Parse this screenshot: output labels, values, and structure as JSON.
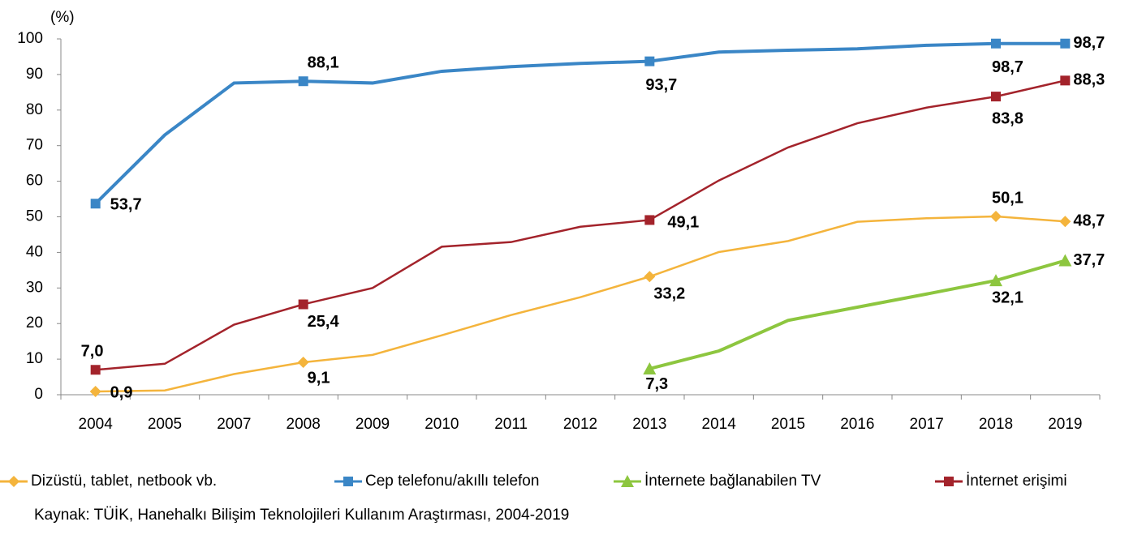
{
  "chart_data": {
    "type": "line",
    "unit_label": "(%)",
    "categories": [
      "2004",
      "2005",
      "2007",
      "2008",
      "2009",
      "2010",
      "2011",
      "2012",
      "2013",
      "2014",
      "2015",
      "2016",
      "2017",
      "2018",
      "2019"
    ],
    "ylim": [
      0,
      100
    ],
    "yticks": [
      0,
      10,
      20,
      30,
      40,
      50,
      60,
      70,
      80,
      90,
      100
    ],
    "legend": "bottom",
    "series": [
      {
        "name": "Dizüstü, tablet, netbook vb.",
        "color": "#f4b43c",
        "marker": "diamond",
        "values": [
          0.9,
          1.2,
          5.8,
          9.1,
          11.2,
          16.7,
          22.4,
          27.4,
          33.2,
          40.1,
          43.2,
          48.6,
          49.6,
          50.1,
          48.7
        ],
        "value_labels": [
          "0,9",
          null,
          null,
          "9,1",
          null,
          null,
          null,
          null,
          "33,2",
          null,
          null,
          null,
          null,
          "50,1",
          "48,7"
        ]
      },
      {
        "name": "Cep telefonu/akıllı telefon",
        "color": "#3a86c6",
        "marker": "square",
        "values": [
          53.7,
          73.0,
          87.6,
          88.1,
          87.6,
          90.9,
          92.2,
          93.1,
          93.7,
          96.3,
          96.8,
          97.2,
          98.2,
          98.7,
          98.7
        ],
        "value_labels": [
          "53,7",
          null,
          null,
          "88,1",
          null,
          null,
          null,
          null,
          "93,7",
          null,
          null,
          null,
          null,
          "98,7",
          "98,7"
        ]
      },
      {
        "name": "İnternete bağlanabilen TV",
        "color": "#8dc63f",
        "marker": "triangle",
        "values": [
          null,
          null,
          null,
          null,
          null,
          null,
          null,
          null,
          7.3,
          12.3,
          20.9,
          24.6,
          28.3,
          32.1,
          37.7
        ],
        "value_labels": [
          null,
          null,
          null,
          null,
          null,
          null,
          null,
          null,
          "7,3",
          null,
          null,
          null,
          null,
          "32,1",
          "37,7"
        ]
      },
      {
        "name": "İnternet erişimi",
        "color": "#a3232b",
        "marker": "square",
        "values": [
          7.0,
          8.7,
          19.7,
          25.4,
          30.0,
          41.6,
          42.9,
          47.2,
          49.1,
          60.2,
          69.5,
          76.3,
          80.7,
          83.8,
          88.3
        ],
        "value_labels": [
          "7,0",
          null,
          null,
          "25,4",
          null,
          null,
          null,
          null,
          "49,1",
          null,
          null,
          null,
          null,
          "83,8",
          "88,3"
        ]
      }
    ],
    "source": "Kaynak: TÜİK, Hanehalkı Bilişim Teknolojileri Kullanım Araştırması, 2004-2019"
  }
}
